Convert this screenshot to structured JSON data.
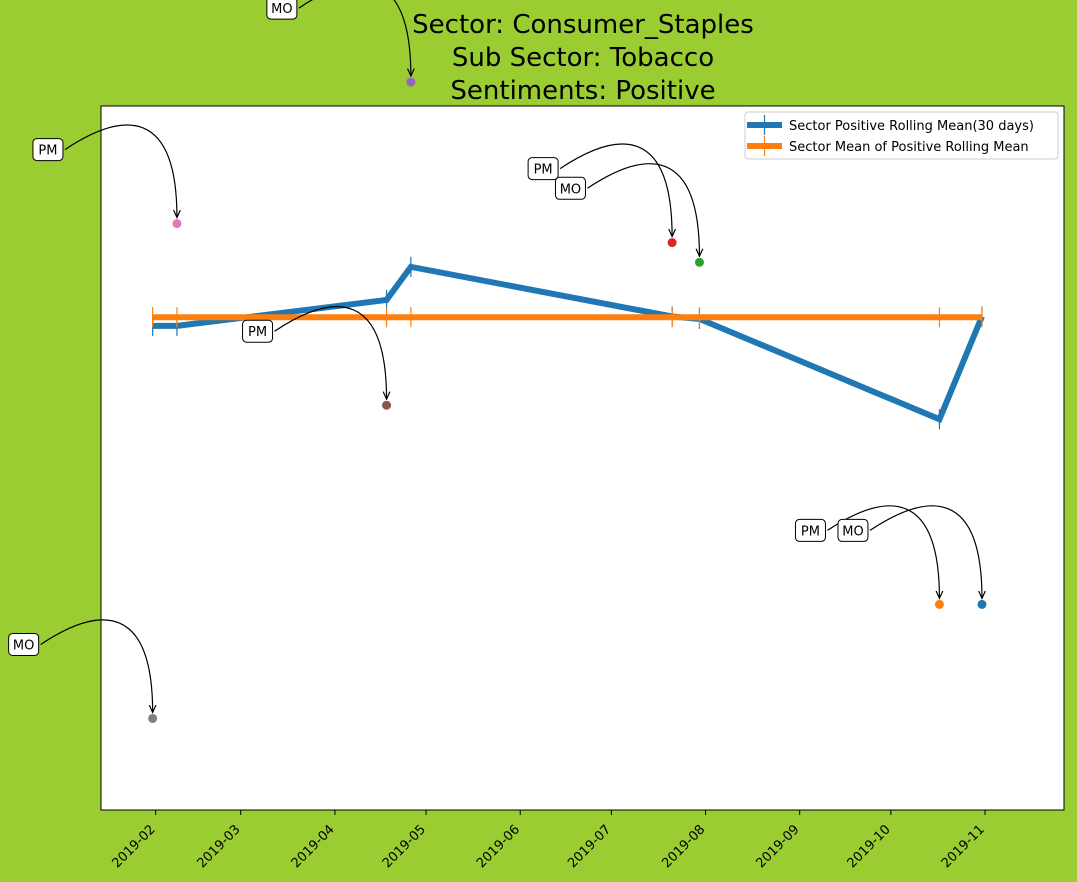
{
  "chart_data": {
    "type": "line",
    "title_lines": [
      "Sector:  Consumer_Staples",
      "Sub Sector:  Tobacco",
      "Sentiments:  Positive"
    ],
    "xlabel": "",
    "ylabel": "",
    "x_ticks": [
      "2019-02",
      "2019-03",
      "2019-04",
      "2019-05",
      "2019-06",
      "2019-07",
      "2019-08",
      "2019-09",
      "2019-10",
      "2019-11"
    ],
    "x_range": [
      "2019-01-14",
      "2019-11-27"
    ],
    "y_range": [
      -0.7,
      0.3
    ],
    "y_ticks_visible": false,
    "grid": false,
    "legend_position": "top-right",
    "colors": {
      "figure_background": "#9acd32",
      "plot_background": "#ffffff",
      "rolling_mean": "#1f77b4",
      "mean": "#ff7f0e"
    },
    "series": [
      {
        "name": "Sector Positive Rolling Mean(30 days)",
        "color": "#1f77b4",
        "points": [
          {
            "x": "2019-01-31",
            "y": -0.0123
          },
          {
            "x": "2019-02-08",
            "y": -0.0123
          },
          {
            "x": "2019-04-18",
            "y": 0.0245
          },
          {
            "x": "2019-04-26",
            "y": 0.0715
          },
          {
            "x": "2019-07-21",
            "y": 0.001
          },
          {
            "x": "2019-07-30",
            "y": -0.0024
          },
          {
            "x": "2019-10-17",
            "y": -0.145
          },
          {
            "x": "2019-10-31",
            "y": 0.001
          }
        ]
      },
      {
        "name": "Sector Mean of Positive Rolling Mean",
        "color": "#ff7f0e",
        "points": [
          {
            "x": "2019-01-31",
            "y": 0.0
          },
          {
            "x": "2019-02-08",
            "y": 0.0
          },
          {
            "x": "2019-04-18",
            "y": 0.0
          },
          {
            "x": "2019-04-26",
            "y": 0.0
          },
          {
            "x": "2019-07-21",
            "y": 0.0
          },
          {
            "x": "2019-07-30",
            "y": 0.0
          },
          {
            "x": "2019-10-17",
            "y": 0.0
          },
          {
            "x": "2019-10-31",
            "y": 0.0
          }
        ]
      }
    ],
    "scatter": [
      {
        "x": "2019-01-31",
        "y": -0.57,
        "color": "#7f7f7f",
        "label": "MO"
      },
      {
        "x": "2019-02-08",
        "y": 0.133,
        "color": "#e377c2",
        "label": "PM"
      },
      {
        "x": "2019-04-18",
        "y": -0.125,
        "color": "#8c564b",
        "label": "PM"
      },
      {
        "x": "2019-04-26",
        "y": 0.334,
        "color": "#9467bd",
        "label": "MO"
      },
      {
        "x": "2019-07-21",
        "y": 0.106,
        "color": "#d62728",
        "label": "PM"
      },
      {
        "x": "2019-07-30",
        "y": 0.078,
        "color": "#2ca02c",
        "label": "MO"
      },
      {
        "x": "2019-10-17",
        "y": -0.408,
        "color": "#ff7f0e",
        "label": "PM"
      },
      {
        "x": "2019-10-31",
        "y": -0.408,
        "color": "#1f77b4",
        "label": "MO"
      }
    ]
  }
}
